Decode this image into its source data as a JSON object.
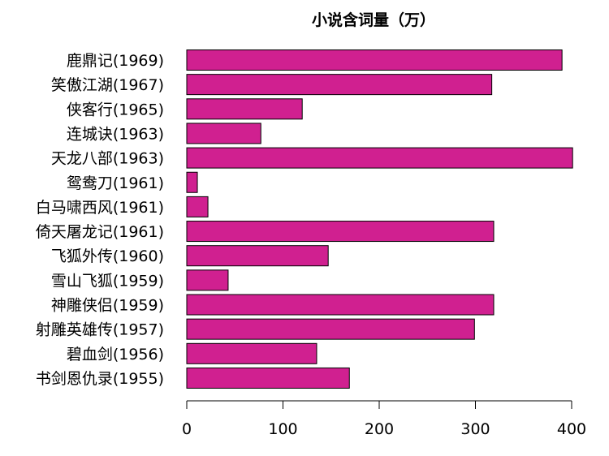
{
  "chart_data": {
    "type": "bar",
    "orientation": "horizontal",
    "title": "小说含词量（万）",
    "xlabel": "",
    "ylabel": "",
    "xlim": [
      0,
      400
    ],
    "x_ticks": [
      0,
      100,
      200,
      300,
      400
    ],
    "grid": false,
    "bar_color": "#D02090",
    "categories": [
      "鹿鼎记(1969)",
      "笑傲江湖(1967)",
      "侠客行(1965)",
      "连城诀(1963)",
      "天龙八部(1963)",
      "鸳鸯刀(1961)",
      "白马啸西风(1961)",
      "倚天屠龙记(1961)",
      "飞狐外传(1960)",
      "雪山飞狐(1959)",
      "神雕侠侣(1959)",
      "射雕英雄传(1957)",
      "碧血剑(1956)",
      "书剑恩仇录(1955)"
    ],
    "values": [
      390,
      317,
      120,
      77,
      401,
      11,
      22,
      319,
      147,
      43,
      319,
      299,
      135,
      169
    ]
  }
}
